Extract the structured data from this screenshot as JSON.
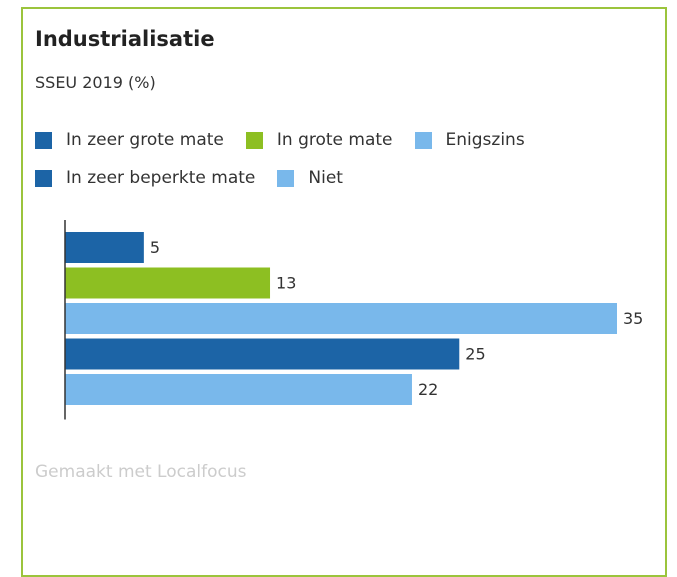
{
  "chart_data": {
    "type": "bar",
    "orientation": "horizontal",
    "title": "Industrialisatie",
    "subtitle": "SSEU 2019 (%)",
    "series": [
      {
        "name": "In zeer grote mate",
        "color": "#1c64a6",
        "values": [
          5
        ]
      },
      {
        "name": "In grote mate",
        "color": "#8dbf22",
        "values": [
          13
        ]
      },
      {
        "name": "Enigszins",
        "color": "#79b8eb",
        "values": [
          35
        ]
      },
      {
        "name": "In zeer beperkte mate",
        "color": "#1c64a6",
        "values": [
          25
        ]
      },
      {
        "name": "Niet",
        "color": "#79b8eb",
        "values": [
          22
        ]
      }
    ]
  },
  "footer": "Gemaakt met Localfocus"
}
